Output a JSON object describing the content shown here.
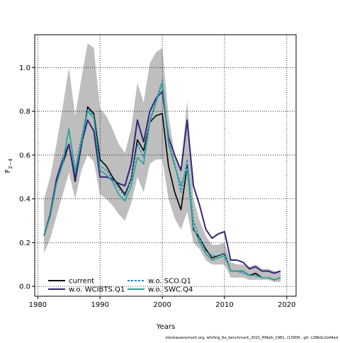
{
  "chart_data": {
    "type": "line",
    "xlabel": "Years",
    "ylabel": "F",
    "ylabel_sub": "2−4",
    "xlim": [
      1979.5,
      2021.5
    ],
    "ylim": [
      -0.045,
      1.15
    ],
    "xticks": [
      1980,
      1990,
      2000,
      2010,
      2020
    ],
    "yticks": [
      0.0,
      0.2,
      0.4,
      0.6,
      0.8,
      1.0
    ],
    "grid": true,
    "legend_position": "bottom-left",
    "x": [
      1981,
      1982,
      1983,
      1984,
      1985,
      1986,
      1987,
      1988,
      1989,
      1990,
      1991,
      1992,
      1993,
      1994,
      1995,
      1996,
      1997,
      1998,
      1999,
      2000,
      2001,
      2002,
      2003,
      2004,
      2005,
      2006,
      2007,
      2008,
      2009,
      2010,
      2011,
      2012,
      2013,
      2014,
      2015,
      2016,
      2017,
      2018,
      2019
    ],
    "band": {
      "color": "#bebebe",
      "upper": [
        0.4,
        0.5,
        0.65,
        0.82,
        1.0,
        0.78,
        0.95,
        1.11,
        1.09,
        0.81,
        0.78,
        0.72,
        0.65,
        0.61,
        0.72,
        0.93,
        0.84,
        1.02,
        1.07,
        1.09,
        0.78,
        0.6,
        0.54,
        0.85,
        0.4,
        0.3,
        0.23,
        0.19,
        0.19,
        0.2,
        0.11,
        0.1,
        0.1,
        0.09,
        0.1,
        0.08,
        0.08,
        0.07,
        0.07
      ],
      "lower": [
        0.15,
        0.22,
        0.32,
        0.42,
        0.52,
        0.4,
        0.53,
        0.6,
        0.57,
        0.42,
        0.4,
        0.37,
        0.33,
        0.3,
        0.38,
        0.5,
        0.43,
        0.56,
        0.58,
        0.58,
        0.4,
        0.31,
        0.26,
        0.34,
        0.2,
        0.17,
        0.12,
        0.1,
        0.1,
        0.1,
        0.04,
        0.04,
        0.04,
        0.03,
        0.03,
        0.03,
        0.03,
        0.02,
        0.02
      ]
    },
    "series": [
      {
        "name": "current",
        "color": "#000000",
        "dash": "solid",
        "values": [
          0.23,
          0.33,
          0.48,
          0.56,
          0.65,
          0.48,
          0.64,
          0.82,
          0.79,
          0.58,
          0.55,
          0.5,
          0.46,
          0.42,
          0.49,
          0.67,
          0.62,
          0.75,
          0.78,
          0.79,
          0.55,
          0.43,
          0.35,
          0.55,
          0.26,
          0.22,
          0.17,
          0.13,
          0.14,
          0.15,
          0.07,
          0.07,
          0.07,
          0.05,
          0.06,
          0.04,
          0.04,
          0.03,
          0.04
        ]
      },
      {
        "name": "w.o. WCIBTS.Q1",
        "color": "#35257a",
        "dash": "solid",
        "values": [
          0.23,
          0.33,
          0.49,
          0.58,
          0.65,
          0.49,
          0.65,
          0.76,
          0.71,
          0.5,
          0.5,
          0.49,
          0.47,
          0.46,
          0.56,
          0.76,
          0.66,
          0.8,
          0.86,
          0.89,
          0.68,
          0.6,
          0.53,
          0.76,
          0.46,
          0.37,
          0.26,
          0.22,
          0.24,
          0.25,
          0.12,
          0.12,
          0.11,
          0.08,
          0.09,
          0.07,
          0.07,
          0.06,
          0.07
        ]
      },
      {
        "name": "w.o. SCO.Q1",
        "color": "#1e88c2",
        "dash": "dashed",
        "values": [
          0.23,
          0.32,
          0.47,
          0.57,
          0.72,
          0.53,
          0.68,
          0.81,
          0.78,
          0.55,
          0.53,
          0.49,
          0.45,
          0.41,
          0.49,
          0.65,
          0.59,
          0.76,
          0.85,
          0.94,
          0.66,
          0.56,
          0.43,
          0.58,
          0.3,
          0.22,
          0.16,
          0.14,
          0.14,
          0.15,
          0.07,
          0.07,
          0.06,
          0.05,
          0.05,
          0.04,
          0.04,
          0.03,
          0.04
        ]
      },
      {
        "name": "w.o. SWC.Q4",
        "color": "#2aa198",
        "dash": "solid",
        "values": [
          0.23,
          0.32,
          0.47,
          0.56,
          0.72,
          0.52,
          0.66,
          0.8,
          0.77,
          0.53,
          0.51,
          0.48,
          0.42,
          0.39,
          0.46,
          0.59,
          0.56,
          0.75,
          0.84,
          0.93,
          0.65,
          0.55,
          0.46,
          0.54,
          0.27,
          0.2,
          0.15,
          0.12,
          0.13,
          0.14,
          0.07,
          0.07,
          0.07,
          0.05,
          0.05,
          0.04,
          0.04,
          0.03,
          0.04
        ]
      }
    ]
  },
  "footer": {
    "caption": "stockassessment.org, whiting_6a_benchmark_2021_RWalk_1981, r13909 , git: c28bdc2a44ad"
  }
}
